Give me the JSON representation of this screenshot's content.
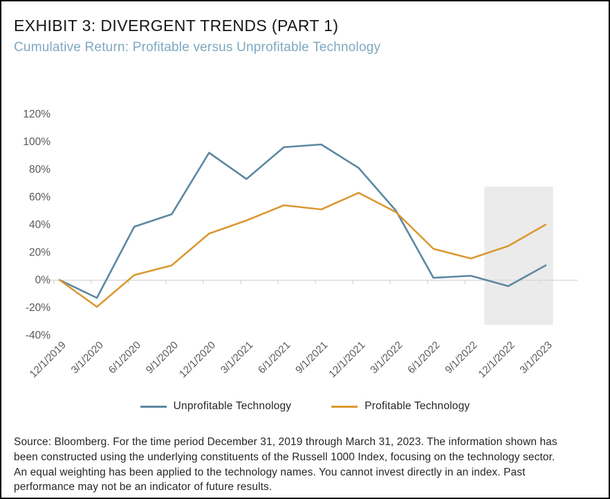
{
  "header": {
    "title": "EXHIBIT 3: DIVERGENT TRENDS (PART 1)",
    "subtitle": "Cumulative Return: Profitable versus Unprofitable Technology"
  },
  "chart_data": {
    "type": "line",
    "categories": [
      "12/1/2019",
      "3/1/2020",
      "6/1/2020",
      "9/1/2020",
      "12/1/2020",
      "3/1/2021",
      "6/1/2021",
      "9/1/2021",
      "12/1/2021",
      "3/1/2022",
      "6/1/2022",
      "9/1/2022",
      "12/1/2022",
      "3/1/2023"
    ],
    "series": [
      {
        "name": "Unprofitable Technology",
        "color": "#5C87A1",
        "values": [
          0,
          -13,
          38.5,
          47.5,
          92,
          73,
          96,
          98,
          81,
          50,
          1.5,
          3,
          -4.5,
          10.5
        ]
      },
      {
        "name": "Profitable Technology",
        "color": "#DB9832",
        "values": [
          0,
          -19.5,
          3.5,
          10.5,
          33.5,
          43,
          54,
          51,
          63,
          49,
          22.5,
          15.5,
          24.5,
          40
        ]
      }
    ],
    "ylim": [
      -40,
      120
    ],
    "ytick_step": 20,
    "ytick_labels": [
      "120%",
      "100%",
      "80%",
      "60%",
      "40%",
      "20%",
      "0%",
      "-20%",
      "-40%"
    ],
    "grid": "zero-line-only",
    "legend_position": "bottom",
    "highlight_band": {
      "start_category": "12/1/2022",
      "end_category": "3/1/2023",
      "value_range": [
        -32.5,
        67.5
      ],
      "color": "#EBEBEB"
    }
  },
  "legend": {
    "items": [
      {
        "label": "Unprofitable Technology",
        "color": "#5C87A1"
      },
      {
        "label": "Profitable Technology",
        "color": "#DB9832"
      }
    ]
  },
  "source": {
    "lines": [
      "Source: Bloomberg. For the time period December 31, 2019 through March 31, 2023.  The information shown has",
      "been constructed using the underlying constituents of the Russell 1000 Index, focusing on the technology sector.",
      "An equal weighting has been applied to the technology names. You cannot invest directly in an index. Past",
      "performance may not be an indicator of future results."
    ]
  },
  "colors": {
    "axis_labels": "#595959",
    "axis_line": "#D9D9D9",
    "legend_text": "#262626"
  }
}
